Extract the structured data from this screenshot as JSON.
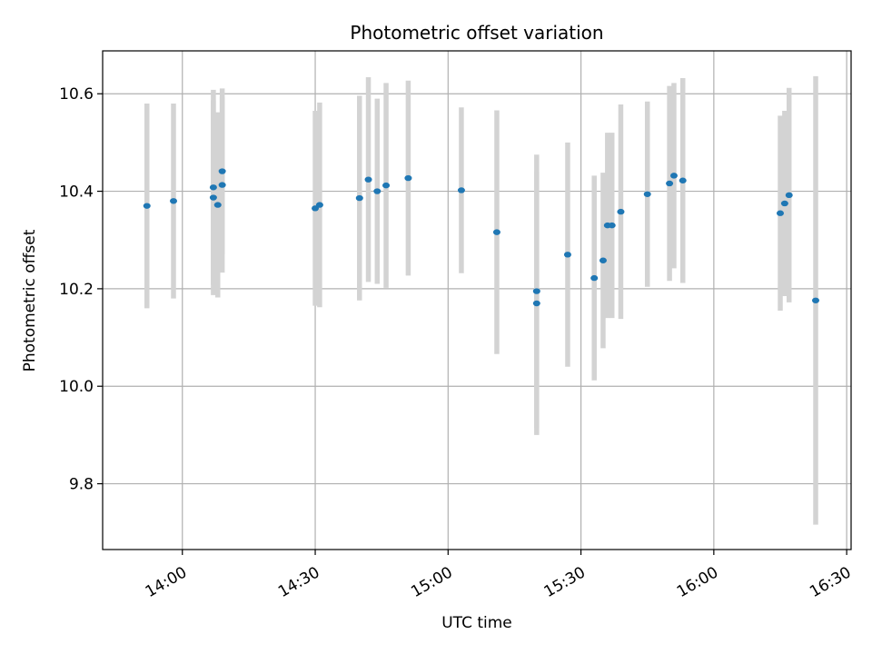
{
  "chart_data": {
    "type": "scatter",
    "title": "Photometric offset variation",
    "xlabel": "UTC time",
    "ylabel": "Photometric offset",
    "xlim": [
      "13:42",
      "16:31"
    ],
    "ylim": [
      9.665,
      10.688
    ],
    "x_ticks": [
      "14:00",
      "14:30",
      "15:00",
      "15:30",
      "16:00",
      "16:30"
    ],
    "y_ticks": [
      9.8,
      10.0,
      10.2,
      10.4,
      10.6
    ],
    "grid": true,
    "colors": {
      "point": "#1f77b4",
      "error_bar": "#d3d3d3"
    },
    "points": [
      {
        "x": "13:52",
        "y": 10.37,
        "err": 0.21
      },
      {
        "x": "13:58",
        "y": 10.38,
        "err": 0.2
      },
      {
        "x": "14:07",
        "y": 10.387,
        "err": 0.2
      },
      {
        "x": "14:07",
        "y": 10.408,
        "err": 0.2
      },
      {
        "x": "14:08",
        "y": 10.372,
        "err": 0.19
      },
      {
        "x": "14:09",
        "y": 10.413,
        "err": 0.18
      },
      {
        "x": "14:09",
        "y": 10.441,
        "err": 0.17
      },
      {
        "x": "14:30",
        "y": 10.365,
        "err": 0.2
      },
      {
        "x": "14:31",
        "y": 10.372,
        "err": 0.21
      },
      {
        "x": "14:40",
        "y": 10.386,
        "err": 0.21
      },
      {
        "x": "14:42",
        "y": 10.424,
        "err": 0.21
      },
      {
        "x": "14:44",
        "y": 10.4,
        "err": 0.19
      },
      {
        "x": "14:46",
        "y": 10.412,
        "err": 0.21
      },
      {
        "x": "14:51",
        "y": 10.427,
        "err": 0.2
      },
      {
        "x": "15:03",
        "y": 10.402,
        "err": 0.17
      },
      {
        "x": "15:11",
        "y": 10.316,
        "err": 0.25
      },
      {
        "x": "15:20",
        "y": 10.195,
        "err": 0.28
      },
      {
        "x": "15:20",
        "y": 10.17,
        "err": 0.27
      },
      {
        "x": "15:27",
        "y": 10.27,
        "err": 0.23
      },
      {
        "x": "15:33",
        "y": 10.222,
        "err": 0.21
      },
      {
        "x": "15:35",
        "y": 10.258,
        "err": 0.18
      },
      {
        "x": "15:36",
        "y": 10.33,
        "err": 0.19
      },
      {
        "x": "15:37",
        "y": 10.33,
        "err": 0.19
      },
      {
        "x": "15:39",
        "y": 10.358,
        "err": 0.22
      },
      {
        "x": "15:45",
        "y": 10.394,
        "err": 0.19
      },
      {
        "x": "15:50",
        "y": 10.416,
        "err": 0.2
      },
      {
        "x": "15:51",
        "y": 10.432,
        "err": 0.19
      },
      {
        "x": "15:53",
        "y": 10.422,
        "err": 0.21
      },
      {
        "x": "16:15",
        "y": 10.355,
        "err": 0.2
      },
      {
        "x": "16:16",
        "y": 10.375,
        "err": 0.19
      },
      {
        "x": "16:17",
        "y": 10.392,
        "err": 0.22
      },
      {
        "x": "16:23",
        "y": 10.176,
        "err": 0.46
      }
    ]
  }
}
